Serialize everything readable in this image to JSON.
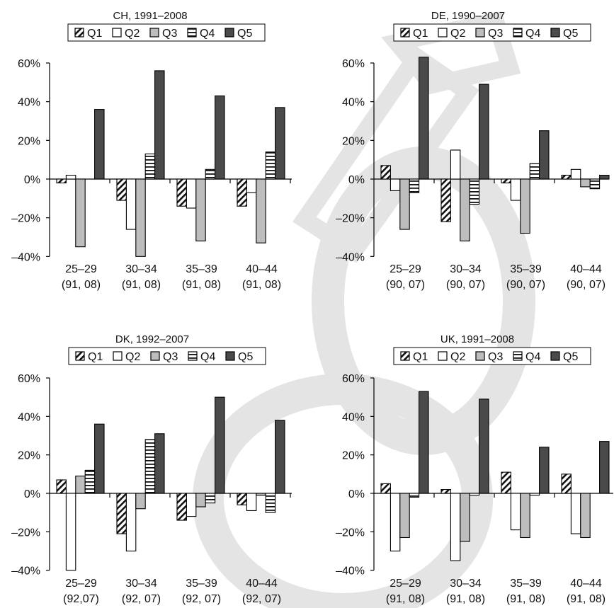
{
  "chart_data": [
    {
      "type": "bar",
      "title": "CH, 1991–2008",
      "categories": [
        "25–29",
        "30–34",
        "35–39",
        "40–44"
      ],
      "category_sublabels": [
        "(91, 08)",
        "(91, 08)",
        "(91, 08)",
        "(91, 08)"
      ],
      "ylim": [
        -40,
        60
      ],
      "yticks": [
        "60%",
        "40%",
        "20%",
        "0%",
        "–20%",
        "–40%"
      ],
      "series": [
        {
          "name": "Q1",
          "values": [
            -2,
            -11,
            -14,
            -14
          ]
        },
        {
          "name": "Q2",
          "values": [
            2,
            -26,
            -15,
            -7
          ]
        },
        {
          "name": "Q3",
          "values": [
            -35,
            -40,
            -32,
            -33
          ]
        },
        {
          "name": "Q4",
          "values": [
            0,
            13,
            5,
            14
          ]
        },
        {
          "name": "Q5",
          "values": [
            36,
            56,
            43,
            37
          ]
        }
      ]
    },
    {
      "type": "bar",
      "title": "DE, 1990–2007",
      "categories": [
        "25–29",
        "30–34",
        "35–39",
        "40–44"
      ],
      "category_sublabels": [
        "(90, 07)",
        "(90, 07)",
        "(90, 07)",
        "(90, 07)"
      ],
      "ylim": [
        -40,
        60
      ],
      "yticks": [
        "60%",
        "40%",
        "20%",
        "0%",
        "–20%",
        "–40%"
      ],
      "series": [
        {
          "name": "Q1",
          "values": [
            7,
            -22,
            -2,
            2
          ]
        },
        {
          "name": "Q2",
          "values": [
            -6,
            15,
            -11,
            5
          ]
        },
        {
          "name": "Q3",
          "values": [
            -26,
            -32,
            -28,
            -4
          ]
        },
        {
          "name": "Q4",
          "values": [
            -7,
            -13,
            8,
            -5
          ]
        },
        {
          "name": "Q5",
          "values": [
            63,
            49,
            25,
            2
          ]
        }
      ]
    },
    {
      "type": "bar",
      "title": "DK, 1992–2007",
      "categories": [
        "25–29",
        "30–34",
        "35–39",
        "40–44"
      ],
      "category_sublabels": [
        "(92,07)",
        "(92, 07)",
        "(92, 07)",
        "(92, 07)"
      ],
      "ylim": [
        -40,
        60
      ],
      "yticks": [
        "60%",
        "40%",
        "20%",
        "0%",
        "–20%",
        "–40%"
      ],
      "series": [
        {
          "name": "Q1",
          "values": [
            7,
            -21,
            -14,
            -6
          ]
        },
        {
          "name": "Q2",
          "values": [
            -40,
            -30,
            -12,
            -9
          ]
        },
        {
          "name": "Q3",
          "values": [
            9,
            -8,
            -7,
            -1
          ]
        },
        {
          "name": "Q4",
          "values": [
            12,
            28,
            -5,
            -10
          ]
        },
        {
          "name": "Q5",
          "values": [
            36,
            31,
            50,
            38
          ]
        }
      ]
    },
    {
      "type": "bar",
      "title": "UK, 1991–2008",
      "categories": [
        "25–29",
        "30–34",
        "35–39",
        "40–44"
      ],
      "category_sublabels": [
        "(91, 08)",
        "(91, 08)",
        "(91, 08)",
        "(91, 08)"
      ],
      "ylim": [
        -40,
        60
      ],
      "yticks": [
        "60%",
        "40%",
        "20%",
        "0%",
        "–20%",
        "–40%"
      ],
      "series": [
        {
          "name": "Q1",
          "values": [
            5,
            2,
            11,
            10
          ]
        },
        {
          "name": "Q2",
          "values": [
            -30,
            -35,
            -19,
            -21
          ]
        },
        {
          "name": "Q3",
          "values": [
            -23,
            -25,
            -23,
            -23
          ]
        },
        {
          "name": "Q4",
          "values": [
            -2,
            -1,
            -1,
            0
          ]
        },
        {
          "name": "Q5",
          "values": [
            53,
            49,
            24,
            27
          ]
        }
      ]
    }
  ],
  "legend_labels": [
    "Q1",
    "Q2",
    "Q3",
    "Q4",
    "Q5"
  ],
  "colors": {
    "axis": "#000000",
    "q1": "hatched-diagonal",
    "q2": "#ffffff",
    "q3": "#bdbdbd",
    "q4": "hatched-horizontal",
    "q5": "#4a4a4a",
    "watermark": "#e4e4e4"
  }
}
